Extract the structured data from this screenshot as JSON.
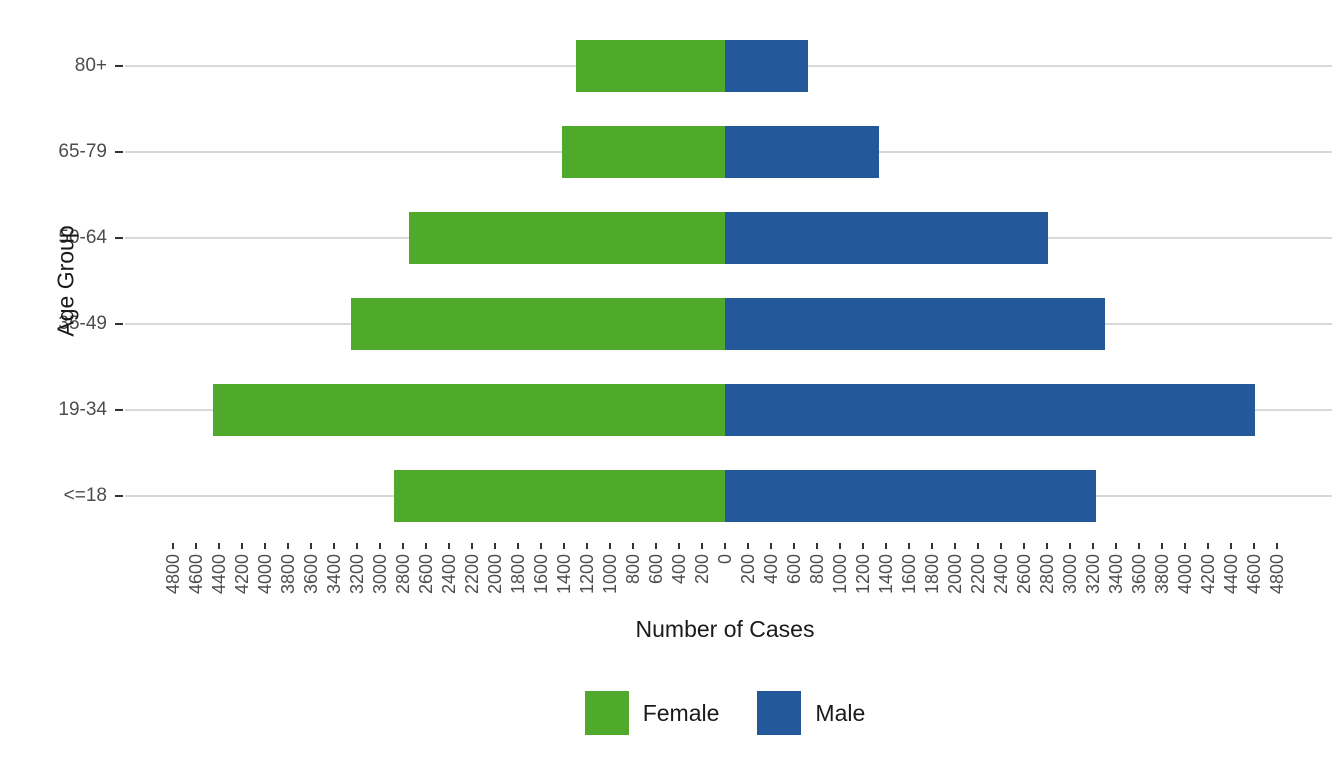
{
  "colors": {
    "female": "#4fa92a",
    "male": "#23589a",
    "gridline": "#d9d9d9",
    "axis_text": "#4d4d4d",
    "title_text": "#1a1a1a",
    "tick_mark": "#333333"
  },
  "chart_data": {
    "type": "bar",
    "subtype": "population-pyramid",
    "orientation": "horizontal",
    "title": "",
    "xlabel": "Number of Cases",
    "ylabel": "Age Group",
    "categories_top_to_bottom": [
      "80+",
      "65-79",
      "50-64",
      "35-49",
      "19-34",
      "<=18"
    ],
    "series": [
      {
        "name": "Female",
        "side": "left",
        "color": "#4fa92a",
        "values": [
          1300,
          1420,
          2750,
          3250,
          4450,
          2880
        ]
      },
      {
        "name": "Male",
        "side": "right",
        "color": "#23589a",
        "values": [
          720,
          1340,
          2810,
          3300,
          4610,
          3230
        ]
      }
    ],
    "x_axis": {
      "min": -4800,
      "max": 4800,
      "tick_step": 200,
      "tick_labels_are_absolute": true,
      "tick_label_angle_deg": 90
    },
    "grid": "horizontal-only",
    "legend_position": "bottom",
    "legend_entries": [
      "Female",
      "Male"
    ]
  },
  "axis_titles": {
    "x": "Number of Cases",
    "y": "Age Group"
  },
  "legend": {
    "female_label": "Female",
    "male_label": "Male"
  }
}
